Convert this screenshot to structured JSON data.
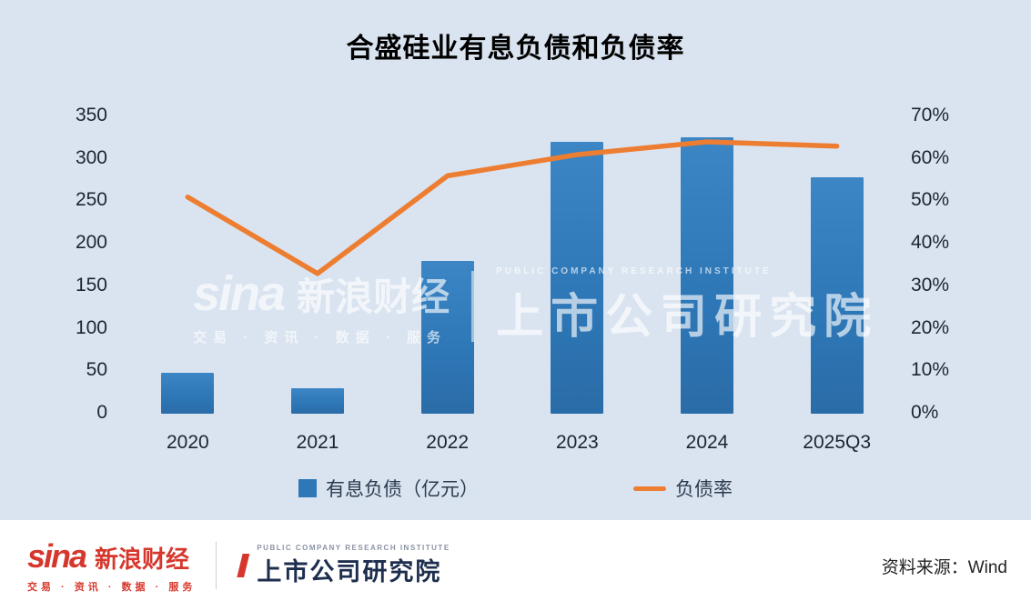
{
  "title": "合盛硅业有息负债和负债率",
  "chart_data": {
    "type": "bar",
    "combo": "bar+line",
    "title": "合盛硅业有息负债和负债率",
    "categories": [
      "2020",
      "2021",
      "2022",
      "2023",
      "2024",
      "2025Q3"
    ],
    "series": [
      {
        "name": "有息负债（亿元）",
        "type": "bar",
        "axis": "left",
        "values": [
          48,
          30,
          180,
          320,
          325,
          278
        ]
      },
      {
        "name": "负债率",
        "type": "line",
        "axis": "right",
        "unit": "%",
        "values": [
          51,
          33,
          56,
          61,
          64,
          63
        ]
      }
    ],
    "left_axis": {
      "min": 0,
      "max": 350,
      "step": 50
    },
    "right_axis": {
      "min": 0,
      "max": 70,
      "step": 10,
      "suffix": "%"
    },
    "grid": false,
    "legend_position": "bottom"
  },
  "legend": [
    {
      "label": "有息负债（亿元）",
      "swatch": "square"
    },
    {
      "label": "负债率",
      "swatch": "line"
    }
  ],
  "watermark": {
    "sina_script": "sina",
    "sina_cn": "新浪财经",
    "sina_tagline": "交易 · 资讯 · 数据 · 服务",
    "institute_en": "PUBLIC COMPANY RESEARCH INSTITUTE",
    "institute_cn": "上市公司研究院"
  },
  "footer": {
    "sina_logo": "sina",
    "sina_name": "新浪财经",
    "sina_tagline": "交易 · 资讯 · 数据 · 服务",
    "institute_tagline": "PUBLIC COMPANY RESEARCH INSTITUTE",
    "institute_name": "上市公司研究院",
    "source": "资料来源：Wind"
  },
  "colors": {
    "background": "#dae4f0",
    "bar": "#2e78b8",
    "line": "#ed7d31",
    "sina_red": "#d6372d",
    "institute_dark": "#1d2e4e"
  }
}
